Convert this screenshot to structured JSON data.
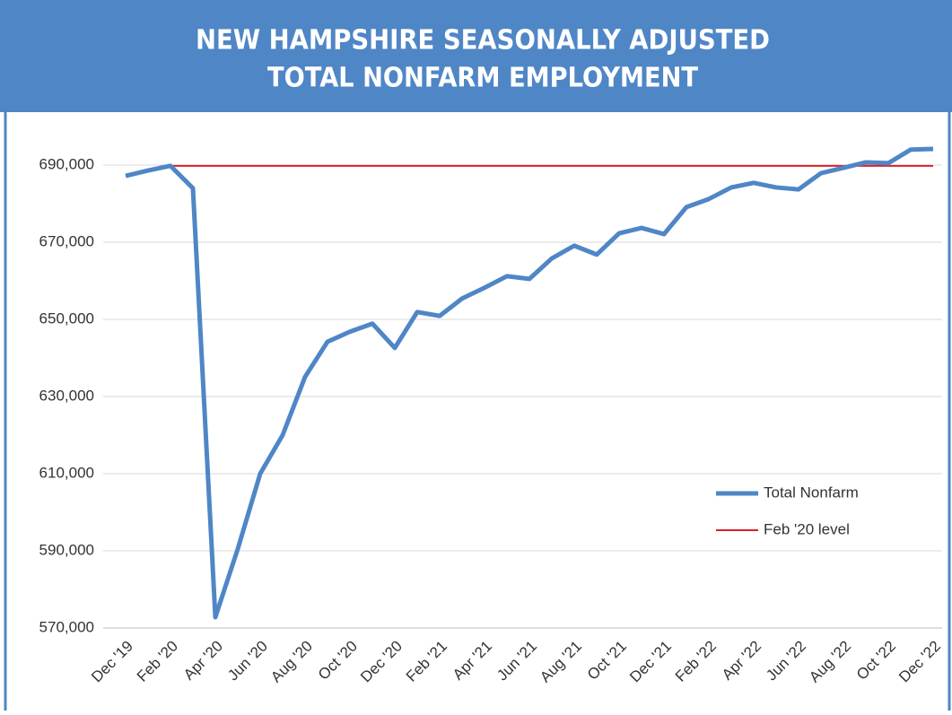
{
  "chart_data": {
    "type": "line",
    "title": [
      "NEW HAMPSHIRE SEASONALLY ADJUSTED",
      "TOTAL NONFARM EMPLOYMENT"
    ],
    "categories": [
      "Dec '19",
      null,
      "Feb '20",
      null,
      "Apr '20",
      null,
      "Jun '20",
      null,
      "Aug '20",
      null,
      "Oct '20",
      null,
      "Dec '20",
      null,
      "Feb '21",
      null,
      "Apr '21",
      null,
      "Jun '21",
      null,
      "Aug '21",
      null,
      "Oct '21",
      null,
      "Dec '21",
      null,
      "Feb '22",
      null,
      "Apr '22",
      null,
      "Jun '22",
      null,
      "Aug '22",
      null,
      "Oct '22",
      null,
      "Dec '22"
    ],
    "series": [
      {
        "name": "Total Nonfarm",
        "color": "#4f86c6",
        "width": 5,
        "values": [
          687200,
          688600,
          689800,
          684000,
          572800,
          590500,
          610000,
          620000,
          635100,
          644200,
          646800,
          648900,
          642600,
          651900,
          650900,
          655400,
          658200,
          661200,
          660500,
          665800,
          669100,
          666800,
          672300,
          673700,
          672100,
          679100,
          681200,
          684200,
          685400,
          684200,
          683700,
          687900,
          689300,
          690700,
          690500,
          694000,
          694200
        ]
      },
      {
        "name": "Feb '20 level",
        "color": "#d9202a",
        "width": 2,
        "values": [
          null,
          null,
          689800,
          689800,
          689800,
          689800,
          689800,
          689800,
          689800,
          689800,
          689800,
          689800,
          689800,
          689800,
          689800,
          689800,
          689800,
          689800,
          689800,
          689800,
          689800,
          689800,
          689800,
          689800,
          689800,
          689800,
          689800,
          689800,
          689800,
          689800,
          689800,
          689800,
          689800,
          689800,
          689800,
          689800,
          689800
        ]
      }
    ],
    "ylim": [
      570000,
      700000
    ],
    "yticks": [
      {
        "value": 570000,
        "label": "570,000"
      },
      {
        "value": 590000,
        "label": "590,000"
      },
      {
        "value": 610000,
        "label": "610,000"
      },
      {
        "value": 630000,
        "label": "630,000"
      },
      {
        "value": 650000,
        "label": "650,000"
      },
      {
        "value": 670000,
        "label": "670,000"
      },
      {
        "value": 690000,
        "label": "690,000"
      }
    ],
    "grid": true,
    "legend": "lower right"
  }
}
